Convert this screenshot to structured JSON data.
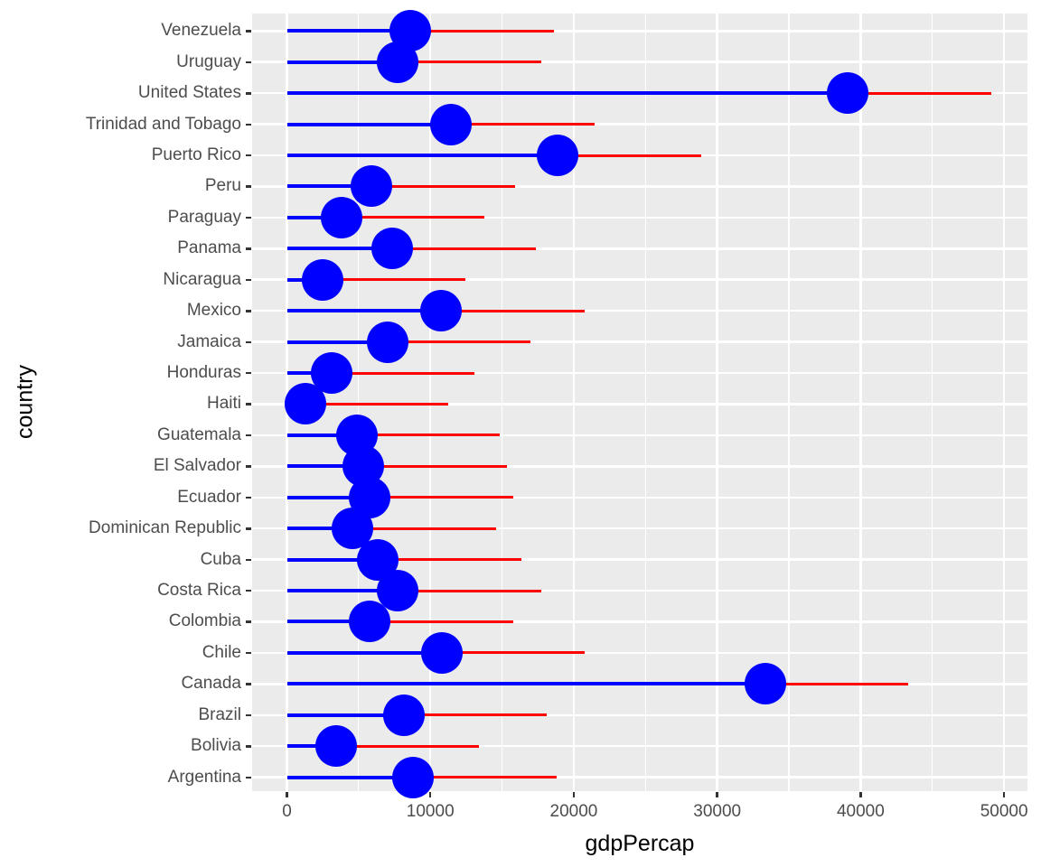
{
  "chart_data": {
    "type": "scatter",
    "subtype": "horizontal-lollipop-dumbbell",
    "title": "",
    "xlabel": "gdpPercap",
    "ylabel": "country",
    "legend_position": "none",
    "grid": "on",
    "x_tick_labels": [
      "0",
      "10000",
      "20000",
      "30000",
      "40000",
      "50000"
    ],
    "x_tick_values": [
      0,
      10000,
      20000,
      30000,
      40000,
      50000
    ],
    "x_minor_tick_values": [
      5000,
      15000,
      25000,
      35000,
      45000
    ],
    "xlim_expanded": [
      -2430,
      51630
    ],
    "categories_top_to_bottom": [
      "Venezuela",
      "Uruguay",
      "United States",
      "Trinidad and Tobago",
      "Puerto Rico",
      "Peru",
      "Paraguay",
      "Panama",
      "Nicaragua",
      "Mexico",
      "Jamaica",
      "Honduras",
      "Haiti",
      "Guatemala",
      "El Salvador",
      "Ecuador",
      "Dominican Republic",
      "Cuba",
      "Costa Rica",
      "Colombia",
      "Chile",
      "Canada",
      "Brazil",
      "Bolivia",
      "Argentina"
    ],
    "series": [
      {
        "name": "gdpPercap (blue point; blue segment drawn from 0 to this value)",
        "color": "#0000ff",
        "values": [
          8605.0,
          7727.0,
          39097.1,
          11460.6,
          18855.6,
          5909.0,
          3783.7,
          7356.0,
          2474.5,
          10742.4,
          6994.8,
          3099.7,
          1270.4,
          4858.3,
          5351.6,
          5773.0,
          4563.8,
          6340.6,
          7723.4,
          5755.3,
          10778.8,
          33329.0,
          8131.2,
          3413.3,
          8797.6
        ]
      },
      {
        "name": "red segment end (gdpPercap + 10000)",
        "color": "#ff0000",
        "values": [
          18605.0,
          17727.0,
          49097.1,
          21460.6,
          28855.6,
          15909.0,
          13783.7,
          17356.0,
          12474.5,
          20742.4,
          16994.8,
          13099.7,
          11270.4,
          14858.3,
          15351.6,
          15773.0,
          14563.8,
          16340.6,
          17723.4,
          15755.3,
          20778.8,
          43329.0,
          18131.2,
          13413.3,
          18797.6
        ]
      }
    ],
    "styles": {
      "point_color": "#0000ff",
      "blue_segment_color": "#0000ff",
      "red_segment_color": "#ff0000",
      "panel_background": "#ebebeb",
      "gridline_color": "#ffffff",
      "tick_label_color": "#4d4d4d",
      "axis_title_color": "#000000",
      "tick_mark_color": "#333333"
    }
  }
}
